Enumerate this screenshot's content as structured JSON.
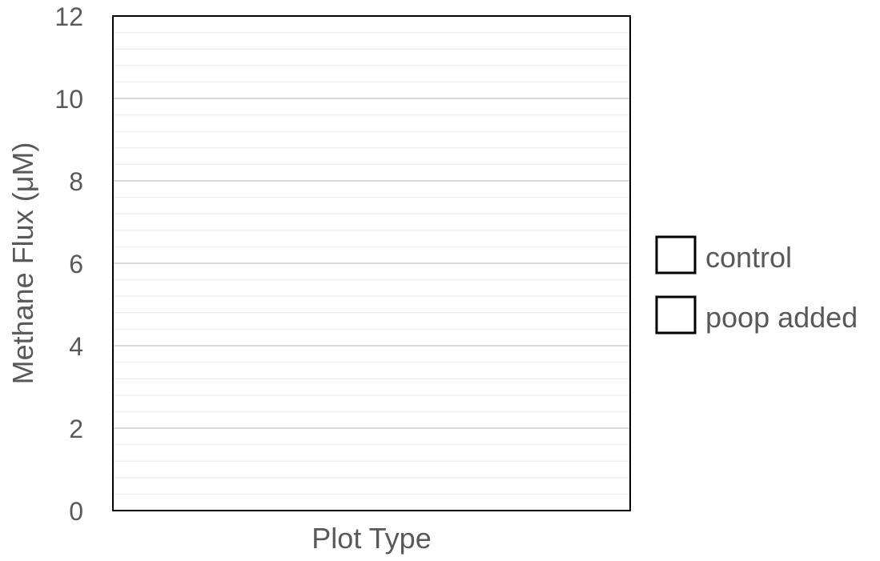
{
  "chart_data": {
    "type": "bar",
    "title": "",
    "xlabel": "Plot Type",
    "ylabel": "Methane Flux (μM)",
    "ylim": [
      0,
      12
    ],
    "y_major_step": 2,
    "y_minor_step": 0.4,
    "y_tick_labels": [
      "0",
      "2",
      "4",
      "6",
      "8",
      "10",
      "12"
    ],
    "categories": [],
    "series": [
      {
        "name": "control",
        "values": []
      },
      {
        "name": "poop added",
        "values": []
      }
    ],
    "grid": true,
    "legend": "right",
    "colors": {
      "axis": "#000000",
      "major_grid": "#d9d9d9",
      "minor_grid": "#efefef",
      "text": "#595959",
      "legend_swatch_fill": "#ffffff",
      "legend_swatch_stroke": "#000000"
    }
  }
}
